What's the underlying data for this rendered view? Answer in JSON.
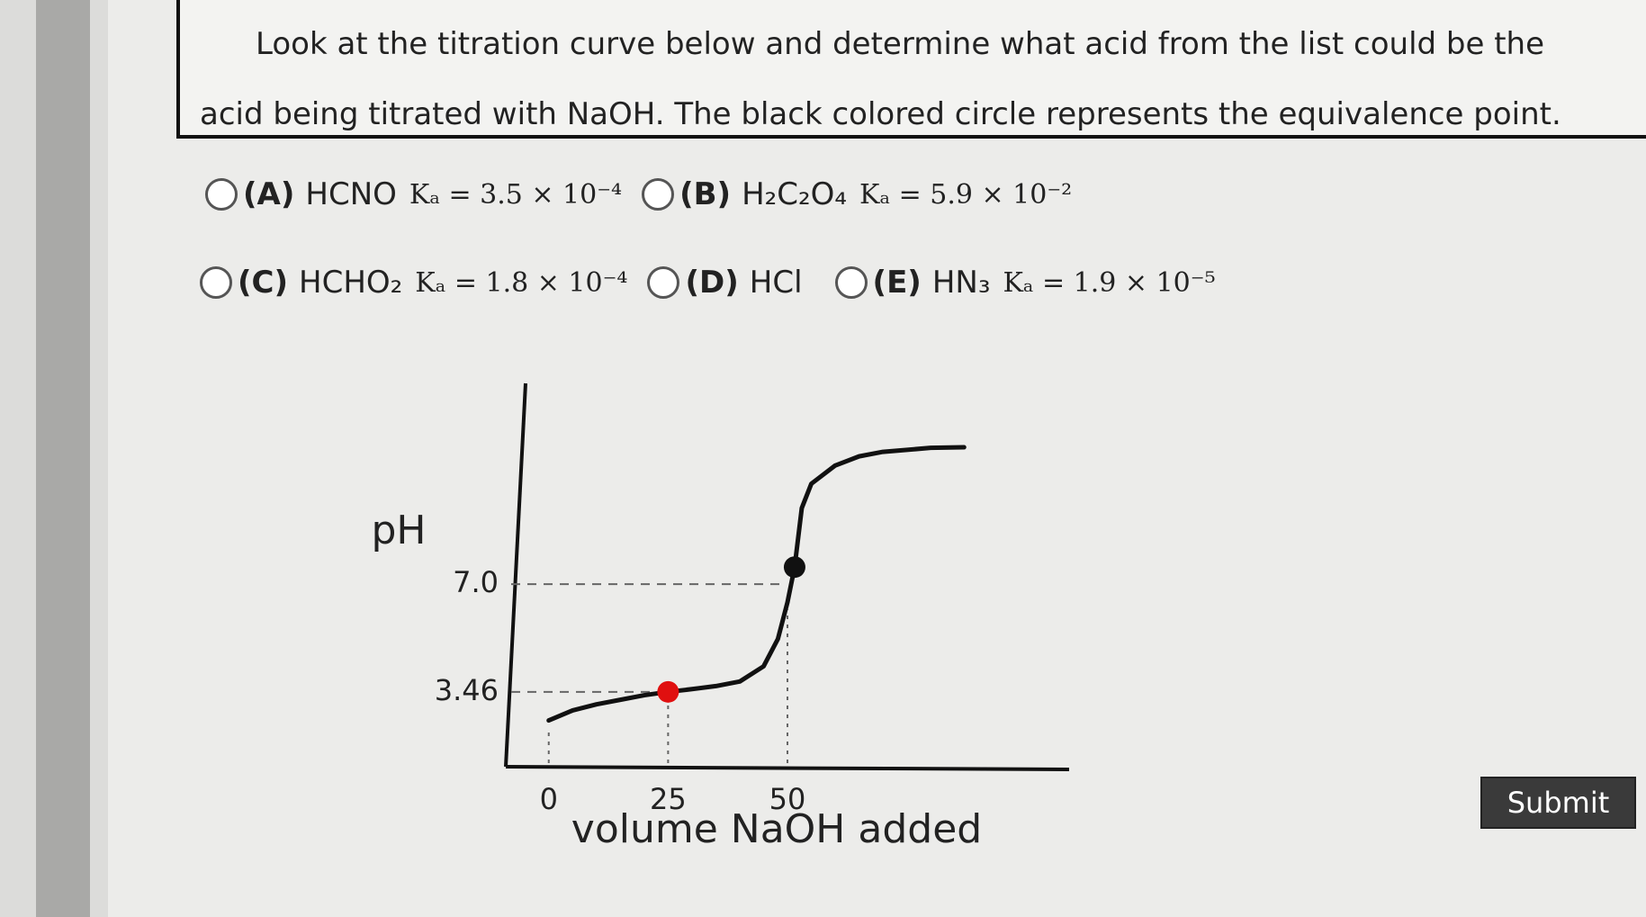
{
  "question": {
    "text": "Look at the titration curve below and determine what acid from the list could be the acid being titrated with NaOH. The black colored circle represents the equivalence point."
  },
  "options": [
    {
      "letter": "(A)",
      "acid": "HCNO",
      "ka": "Kₐ = 3.5 × 10⁻⁴"
    },
    {
      "letter": "(B)",
      "acid": "H₂C₂O₄",
      "ka": "Kₐ = 5.9 × 10⁻²"
    },
    {
      "letter": "(C)",
      "acid": "HCHO₂",
      "ka": "Kₐ = 1.8 × 10⁻⁴"
    },
    {
      "letter": "(D)",
      "acid": "HCl"
    },
    {
      "letter": "(E)",
      "acid": "HN₃",
      "ka": "Kₐ = 1.9 × 10⁻⁵"
    }
  ],
  "submit": "Submit",
  "chart_data": {
    "type": "line",
    "x_label": "volume NaOH added",
    "y_label": "pH",
    "x": [
      0,
      5,
      10,
      15,
      20,
      25,
      30,
      35,
      40,
      45,
      48,
      50,
      51.5,
      53,
      55,
      60,
      65,
      70,
      80,
      87
    ],
    "values": [
      2.52,
      2.85,
      3.05,
      3.2,
      3.35,
      3.46,
      3.55,
      3.65,
      3.8,
      4.3,
      5.2,
      6.4,
      7.56,
      9.5,
      10.3,
      10.9,
      11.2,
      11.35,
      11.48,
      11.5
    ],
    "color": "#111111",
    "markers": [
      {
        "x": 25,
        "y": 3.46,
        "color": "#e01010"
      },
      {
        "x": 51.5,
        "y": 7.56,
        "color": "#111111"
      }
    ],
    "xlim": [
      -9,
      109
    ],
    "ylim": [
      1,
      13.6
    ],
    "xticks": [
      0,
      25,
      50
    ],
    "yticks": [
      3.46,
      {
        "value": 7,
        "label": "7.0"
      }
    ],
    "grid": true
  }
}
